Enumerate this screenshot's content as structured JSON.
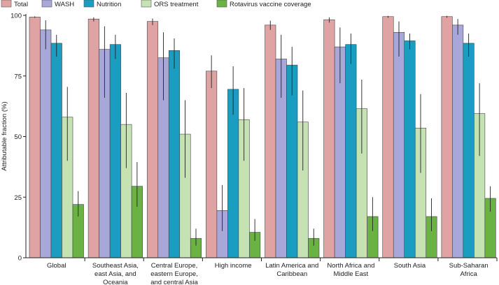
{
  "chart_data": {
    "type": "bar",
    "title": "",
    "xlabel": "",
    "ylabel": "Attributable fraction (%)",
    "ylim": [
      0,
      100
    ],
    "yticks": [
      "0",
      "25",
      "50",
      "75",
      "100"
    ],
    "yticks_values": [
      0,
      25,
      50,
      75,
      100
    ],
    "legend_position": "top-left",
    "categories": [
      [
        "Global"
      ],
      [
        "Southeast Asia,",
        "east Asia, and",
        "Oceania"
      ],
      [
        "Central Europe,",
        "eastern Europe,",
        "and central Asia"
      ],
      [
        "High income"
      ],
      [
        "Latin America and",
        "Caribbean"
      ],
      [
        "North Africa and",
        "Middle East"
      ],
      [
        "South Asia"
      ],
      [
        "Sub-Saharan",
        "Africa"
      ]
    ],
    "series": [
      {
        "name": "Total",
        "color": "#e0a3a3",
        "values": [
          99.3,
          98.5,
          97.5,
          77,
          96,
          98.2,
          99.5,
          99.5
        ],
        "err_low": [
          99,
          97.5,
          96,
          70,
          94,
          97,
          99,
          99
        ],
        "err_high": [
          99.6,
          99.2,
          98.7,
          83.5,
          97.8,
          99.2,
          99.8,
          99.8
        ]
      },
      {
        "name": "WASH",
        "color": "#a7a7d9",
        "values": [
          94,
          86,
          82.5,
          19.5,
          82,
          87,
          93,
          96
        ],
        "err_low": [
          86,
          66,
          65,
          11,
          66,
          72,
          83,
          92
        ],
        "err_high": [
          98,
          95.5,
          93,
          30,
          92,
          95,
          97.5,
          98.5
        ]
      },
      {
        "name": "Nutrition",
        "color": "#1a9dc0",
        "values": [
          88.5,
          88,
          85.5,
          69.5,
          79.5,
          88,
          89.5,
          88.5
        ],
        "err_low": [
          83,
          82,
          78,
          59,
          67,
          80,
          86,
          83
        ],
        "err_high": [
          92,
          92,
          90.5,
          79,
          87,
          92.5,
          92.5,
          92.5
        ]
      },
      {
        "name": "ORS treatment",
        "color": "#c5e2b3",
        "values": [
          58,
          55,
          51,
          57,
          56,
          61.5,
          53.5,
          59.5
        ],
        "err_low": [
          40,
          37,
          33,
          40,
          36,
          43,
          35,
          42
        ],
        "err_high": [
          70.5,
          68,
          65,
          70,
          69,
          73.5,
          67.5,
          72
        ]
      },
      {
        "name": "Rotavirus vaccine coverage",
        "color": "#6ab343",
        "values": [
          22,
          29.5,
          8,
          10.5,
          8,
          17,
          17,
          24.5
        ],
        "err_low": [
          17,
          21,
          5,
          7,
          5,
          11,
          11,
          19
        ],
        "err_high": [
          27.5,
          39.5,
          12,
          16,
          12,
          25,
          24.5,
          29.5
        ]
      }
    ]
  }
}
